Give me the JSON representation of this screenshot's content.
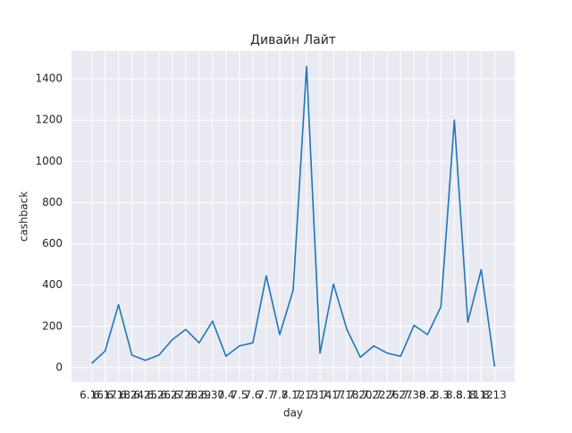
{
  "chart_data": {
    "type": "line",
    "title": "Дивайн Лайт",
    "xlabel": "day",
    "ylabel": "cashback",
    "categories": [
      "6.16",
      "6.17",
      "6.18",
      "6.24",
      "6.25",
      "6.26",
      "6.27",
      "6.28",
      "6.29",
      "6.30",
      "7.4",
      "7.5",
      "7.6",
      "7.7",
      "7.8",
      "7.12",
      "7.13",
      "7.14",
      "7.17",
      "7.18",
      "7.20",
      "7.22",
      "7.26",
      "7.27",
      "7.30",
      "8.2",
      "8.3",
      "8.8",
      "8.11",
      "8.12",
      "8.13"
    ],
    "series": [
      {
        "name": "cashback",
        "color": "#1f77b4",
        "values": [
          20,
          80,
          305,
          60,
          35,
          60,
          135,
          185,
          120,
          225,
          55,
          105,
          120,
          445,
          160,
          375,
          1460,
          70,
          405,
          185,
          50,
          105,
          70,
          55,
          205,
          160,
          295,
          1200,
          220,
          475,
          5
        ]
      }
    ],
    "ylim": [
      -70,
      1535
    ],
    "yticks": [
      0,
      200,
      400,
      600,
      800,
      1000,
      1200,
      1400
    ],
    "grid": true
  }
}
